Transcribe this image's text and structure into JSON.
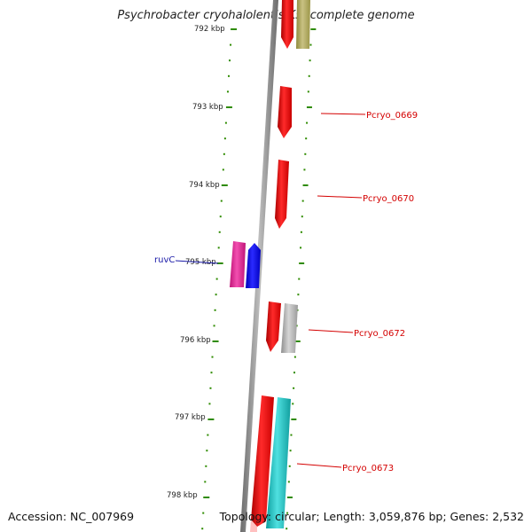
{
  "title": "Psychrobacter cryohalolentis K5, complete genome",
  "footer": {
    "accession": "Accession: NC_007969",
    "summary": "Topology: circular; Length: 3,059,876 bp; Genes: 2,532"
  },
  "ruler": {
    "labels": [
      "792 kbp",
      "793 kbp",
      "794 kbp",
      "795 kbp",
      "796 kbp",
      "797 kbp",
      "798 kbp"
    ],
    "tick_color": "#2e8b00"
  },
  "gene_labels": [
    {
      "name": "Pcryo_0669",
      "color": "#d40000"
    },
    {
      "name": "Pcryo_0670",
      "color": "#d40000"
    },
    {
      "name": "ruvC",
      "color": "#1a1aa8"
    },
    {
      "name": "Pcryo_0672",
      "color": "#d40000"
    },
    {
      "name": "Pcryo_0673",
      "color": "#d40000"
    }
  ],
  "colors": {
    "cds": "#ff1a1a",
    "backbone": "#8a8a8a",
    "khaki": "#bdb76b",
    "magenta": "#e6239a",
    "blue": "#1010e8",
    "grey": "#b4b4b4",
    "cyan": "#20c8c8",
    "pink": "#ffb0b0"
  }
}
